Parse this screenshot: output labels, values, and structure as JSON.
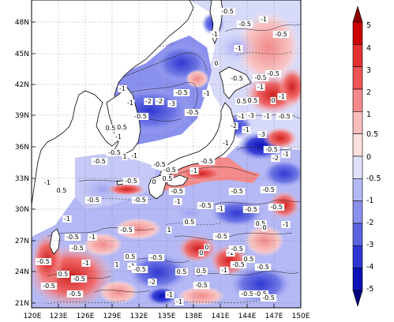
{
  "map": {
    "lat_ticks": [
      "48N",
      "45N",
      "42N",
      "39N",
      "36N",
      "33N",
      "30N",
      "27N",
      "24N",
      "21N"
    ],
    "lon_ticks": [
      "120E",
      "123E",
      "126E",
      "129E",
      "132E",
      "135E",
      "138E",
      "141E",
      "144E",
      "147E",
      "150E"
    ]
  },
  "colorbar": {
    "labels": [
      "5",
      "4",
      "3",
      "2",
      "1",
      "0.5",
      "0",
      "-0.5",
      "-1",
      "-2",
      "-3",
      "-4",
      "-5"
    ],
    "colors": [
      "#8b0000",
      "#cc0000",
      "#e53030",
      "#f05454",
      "#f58a8a",
      "#f9bdbd",
      "#fde0e0",
      "#dfe1fb",
      "#b4b8f4",
      "#8a90ee",
      "#5d63e0",
      "#2f36d4",
      "#0a12b8",
      "#000080"
    ]
  },
  "contour_labels": [
    {
      "text": "-0.5"
    },
    {
      "text": "-0.5"
    },
    {
      "text": "-1"
    },
    {
      "text": "-0.5"
    },
    {
      "text": "-1"
    },
    {
      "text": "-1"
    },
    {
      "text": "-2"
    },
    {
      "text": "-3"
    },
    {
      "text": "-2"
    },
    {
      "text": "-1"
    },
    {
      "text": "-0.5"
    },
    {
      "text": "-0.5"
    },
    {
      "text": "-1"
    },
    {
      "text": "-1"
    },
    {
      "text": "-0.5"
    },
    {
      "text": "0"
    },
    {
      "text": "-0.5"
    },
    {
      "text": "0.5"
    },
    {
      "text": "-1"
    },
    {
      "text": "-3"
    },
    {
      "text": "-0.5"
    },
    {
      "text": "-0.5"
    },
    {
      "text": "-1"
    },
    {
      "text": "0"
    },
    {
      "text": "-1"
    },
    {
      "text": "-0.5"
    },
    {
      "text": "-1"
    },
    {
      "text": "0.5"
    },
    {
      "text": "-2"
    },
    {
      "text": "-1"
    },
    {
      "text": "-3"
    },
    {
      "text": "-1"
    },
    {
      "text": "-0.5"
    },
    {
      "text": "-2"
    },
    {
      "text": "-1"
    },
    {
      "text": "-0.5"
    },
    {
      "text": "-1"
    },
    {
      "text": "-0.5"
    },
    {
      "text": "-0.5"
    },
    {
      "text": "0.5"
    },
    {
      "text": "-0.5"
    },
    {
      "text": "0"
    },
    {
      "text": "-1"
    },
    {
      "text": "-0.5"
    },
    {
      "text": "0.5"
    },
    {
      "text": "-0.5"
    },
    {
      "text": "-1"
    },
    {
      "text": "1"
    },
    {
      "text": "-0.5"
    },
    {
      "text": "-0.5"
    },
    {
      "text": "0.5"
    },
    {
      "text": "-1"
    },
    {
      "text": "-0.5"
    },
    {
      "text": "-1"
    },
    {
      "text": "0.5"
    },
    {
      "text": "-0.5"
    },
    {
      "text": "-0.5"
    },
    {
      "text": "0.5"
    },
    {
      "text": "0"
    },
    {
      "text": "-0.5"
    },
    {
      "text": "1"
    },
    {
      "text": "-0.5"
    },
    {
      "text": "-0.5"
    },
    {
      "text": "-1"
    },
    {
      "text": "0"
    },
    {
      "text": "0"
    },
    {
      "text": "-1"
    },
    {
      "text": "-0.5"
    },
    {
      "text": "0.5"
    },
    {
      "text": "-1"
    },
    {
      "text": "-0.5"
    },
    {
      "text": "-0.5"
    },
    {
      "text": "0.5"
    },
    {
      "text": "0.5"
    },
    {
      "text": "0.5"
    },
    {
      "text": "1"
    },
    {
      "text": "-1"
    },
    {
      "text": "-0.5"
    },
    {
      "text": "-0.5"
    },
    {
      "text": "-1"
    },
    {
      "text": "-0.5"
    },
    {
      "text": "0.5"
    },
    {
      "text": "-0.5"
    },
    {
      "text": "-0.5"
    },
    {
      "text": "-0.5"
    },
    {
      "text": "-1"
    },
    {
      "text": "-0.5"
    },
    {
      "text": "-2"
    },
    {
      "text": "-1"
    },
    {
      "text": "-0.5"
    },
    {
      "text": "-0.5"
    },
    {
      "text": "-0.5"
    },
    {
      "text": "-1"
    },
    {
      "text": "-0.5"
    },
    {
      "text": "-1"
    },
    {
      "text": "-0.5"
    },
    {
      "text": "-0.5"
    },
    {
      "text": "-0.5"
    },
    {
      "text": "-1"
    },
    {
      "text": "-0.5"
    }
  ]
}
